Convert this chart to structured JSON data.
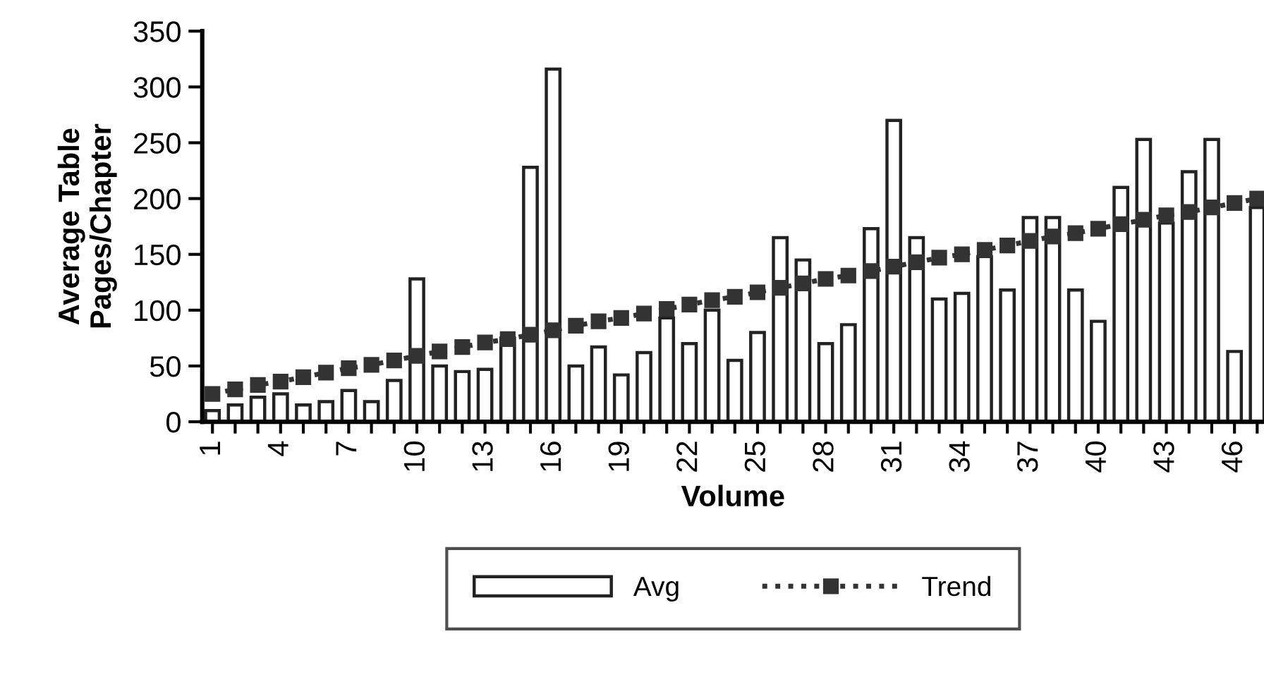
{
  "chart_data": {
    "type": "bar",
    "xlabel": "Volume",
    "ylabel": "Average Table\nPages/Chapter",
    "categories": [
      "1",
      null,
      null,
      "4",
      null,
      null,
      "7",
      null,
      null,
      "10",
      null,
      null,
      "13",
      null,
      null,
      "16",
      null,
      null,
      "19",
      null,
      null,
      "22",
      null,
      null,
      "25",
      null,
      null,
      "28",
      null,
      null,
      "31",
      null,
      null,
      "34",
      null,
      null,
      "37",
      null,
      null,
      "40",
      null,
      null,
      "43",
      null,
      null,
      "46",
      null
    ],
    "series": [
      {
        "name": "Avg",
        "color": "#ffffff",
        "values": [
          10,
          15,
          22,
          25,
          15,
          18,
          28,
          18,
          37,
          128,
          50,
          45,
          47,
          75,
          228,
          316,
          50,
          67,
          42,
          62,
          93,
          70,
          100,
          55,
          80,
          165,
          145,
          70,
          87,
          173,
          270,
          165,
          110,
          115,
          148,
          118,
          183,
          183,
          118,
          90,
          210,
          253,
          178,
          224,
          253,
          63,
          192
        ]
      },
      {
        "name": "Trend",
        "type": "line",
        "color": "#333333",
        "marker": "square",
        "line_style": "dotted",
        "values": [
          25,
          29,
          33,
          36,
          40,
          44,
          48,
          51,
          55,
          59,
          63,
          67,
          71,
          74,
          78,
          82,
          86,
          90,
          93,
          97,
          101,
          105,
          109,
          112,
          116,
          120,
          124,
          128,
          131,
          135,
          139,
          143,
          147,
          150,
          154,
          158,
          162,
          166,
          169,
          173,
          177,
          181,
          185,
          188,
          192,
          196,
          200
        ]
      }
    ],
    "ylim": [
      0,
      350
    ],
    "yticks": [
      0,
      50,
      100,
      150,
      200,
      250,
      300,
      350
    ],
    "grid": false,
    "legend": "bottom"
  }
}
